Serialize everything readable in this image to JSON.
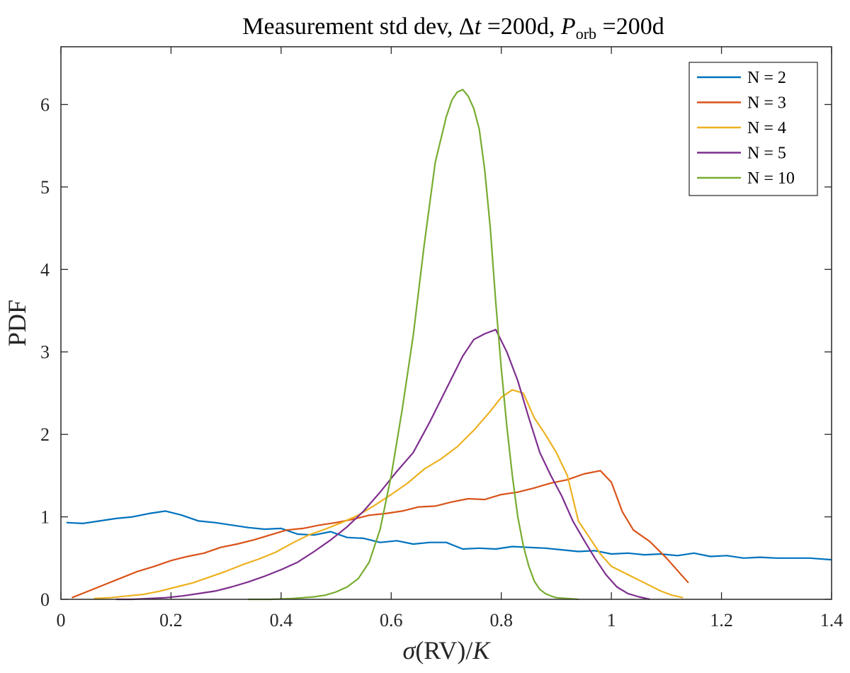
{
  "chart_data": {
    "type": "line",
    "title": "Measurement std dev, Δt =200d, P_orb =200d",
    "title_parts": {
      "prefix": "Measurement std dev, ",
      "delta": "Δ",
      "t": "t",
      "eq1": " =200d, ",
      "p": "P",
      "orb": "orb",
      "eq2": " =200d"
    },
    "xlabel": "σ(RV)/K",
    "xlabel_parts": {
      "sigma": "σ",
      "rv": "(RV)/",
      "k": "K"
    },
    "ylabel": "PDF",
    "xlim": [
      0,
      1.4
    ],
    "ylim": [
      0,
      6.7
    ],
    "xticks": [
      0,
      0.2,
      0.4,
      0.6,
      0.8,
      1,
      1.2,
      1.4
    ],
    "xtick_labels": [
      "0",
      "0.2",
      "0.4",
      "0.6",
      "0.8",
      "1",
      "1.2",
      "1.4"
    ],
    "yticks": [
      0,
      1,
      2,
      3,
      4,
      5,
      6
    ],
    "ytick_labels": [
      "0",
      "1",
      "2",
      "3",
      "4",
      "5",
      "6"
    ],
    "grid": false,
    "legend_position": "top-right",
    "series": [
      {
        "name": "N = 2",
        "color": "#0072BD",
        "x": [
          0.01,
          0.04,
          0.07,
          0.1,
          0.13,
          0.16,
          0.19,
          0.22,
          0.25,
          0.28,
          0.31,
          0.34,
          0.37,
          0.4,
          0.43,
          0.46,
          0.49,
          0.52,
          0.55,
          0.58,
          0.61,
          0.64,
          0.67,
          0.7,
          0.73,
          0.76,
          0.79,
          0.82,
          0.85,
          0.88,
          0.91,
          0.94,
          0.97,
          1.0,
          1.03,
          1.06,
          1.09,
          1.12,
          1.15,
          1.18,
          1.21,
          1.24,
          1.27,
          1.3,
          1.33,
          1.36,
          1.4
        ],
        "y": [
          0.93,
          0.92,
          0.95,
          0.98,
          1.0,
          1.04,
          1.07,
          1.02,
          0.95,
          0.93,
          0.9,
          0.87,
          0.85,
          0.86,
          0.79,
          0.78,
          0.82,
          0.75,
          0.74,
          0.69,
          0.71,
          0.67,
          0.69,
          0.69,
          0.61,
          0.62,
          0.61,
          0.64,
          0.63,
          0.62,
          0.6,
          0.58,
          0.59,
          0.55,
          0.56,
          0.54,
          0.55,
          0.53,
          0.56,
          0.52,
          0.53,
          0.5,
          0.51,
          0.5,
          0.5,
          0.5,
          0.48
        ]
      },
      {
        "name": "N = 3",
        "color": "#D95319",
        "x": [
          0.02,
          0.05,
          0.08,
          0.11,
          0.14,
          0.17,
          0.2,
          0.23,
          0.26,
          0.29,
          0.32,
          0.35,
          0.38,
          0.41,
          0.44,
          0.47,
          0.5,
          0.53,
          0.56,
          0.59,
          0.62,
          0.65,
          0.68,
          0.71,
          0.74,
          0.77,
          0.8,
          0.83,
          0.86,
          0.89,
          0.92,
          0.95,
          0.98,
          1.0,
          1.02,
          1.04,
          1.07,
          1.1,
          1.12,
          1.14
        ],
        "y": [
          0.02,
          0.1,
          0.18,
          0.26,
          0.34,
          0.4,
          0.47,
          0.52,
          0.56,
          0.63,
          0.67,
          0.72,
          0.78,
          0.84,
          0.86,
          0.9,
          0.93,
          0.97,
          1.02,
          1.04,
          1.07,
          1.12,
          1.13,
          1.18,
          1.22,
          1.21,
          1.27,
          1.3,
          1.35,
          1.41,
          1.45,
          1.52,
          1.56,
          1.42,
          1.06,
          0.84,
          0.7,
          0.5,
          0.35,
          0.2
        ]
      },
      {
        "name": "N = 4",
        "color": "#EDB120",
        "x": [
          0.06,
          0.09,
          0.12,
          0.15,
          0.18,
          0.21,
          0.24,
          0.27,
          0.3,
          0.33,
          0.36,
          0.39,
          0.42,
          0.45,
          0.48,
          0.51,
          0.54,
          0.57,
          0.6,
          0.63,
          0.66,
          0.69,
          0.72,
          0.75,
          0.78,
          0.8,
          0.82,
          0.84,
          0.86,
          0.88,
          0.9,
          0.92,
          0.94,
          0.96,
          0.98,
          1.0,
          1.03,
          1.06,
          1.09,
          1.11,
          1.13
        ],
        "y": [
          0.01,
          0.02,
          0.04,
          0.06,
          0.1,
          0.15,
          0.2,
          0.27,
          0.34,
          0.42,
          0.49,
          0.57,
          0.68,
          0.78,
          0.85,
          0.93,
          1.02,
          1.14,
          1.27,
          1.41,
          1.58,
          1.7,
          1.85,
          2.05,
          2.28,
          2.45,
          2.54,
          2.5,
          2.2,
          2.0,
          1.78,
          1.5,
          0.95,
          0.75,
          0.55,
          0.4,
          0.3,
          0.2,
          0.1,
          0.05,
          0.02
        ]
      },
      {
        "name": "N = 5",
        "color": "#7E2F8E",
        "x": [
          0.1,
          0.13,
          0.16,
          0.19,
          0.22,
          0.25,
          0.28,
          0.31,
          0.34,
          0.37,
          0.4,
          0.43,
          0.46,
          0.49,
          0.52,
          0.55,
          0.58,
          0.61,
          0.64,
          0.67,
          0.7,
          0.73,
          0.75,
          0.77,
          0.79,
          0.81,
          0.83,
          0.85,
          0.87,
          0.89,
          0.91,
          0.93,
          0.95,
          0.97,
          0.99,
          1.01,
          1.03,
          1.05,
          1.07
        ],
        "y": [
          0.0,
          0.0,
          0.01,
          0.02,
          0.04,
          0.07,
          0.1,
          0.15,
          0.21,
          0.28,
          0.36,
          0.45,
          0.58,
          0.72,
          0.88,
          1.07,
          1.3,
          1.55,
          1.78,
          2.15,
          2.55,
          2.95,
          3.15,
          3.22,
          3.27,
          3.0,
          2.65,
          2.2,
          1.78,
          1.5,
          1.25,
          0.95,
          0.72,
          0.5,
          0.3,
          0.15,
          0.07,
          0.03,
          0.0
        ]
      },
      {
        "name": "N = 10",
        "color": "#77AC30",
        "x": [
          0.34,
          0.38,
          0.42,
          0.44,
          0.46,
          0.48,
          0.5,
          0.52,
          0.54,
          0.56,
          0.58,
          0.6,
          0.62,
          0.64,
          0.66,
          0.68,
          0.7,
          0.71,
          0.72,
          0.73,
          0.74,
          0.75,
          0.76,
          0.77,
          0.78,
          0.79,
          0.8,
          0.81,
          0.82,
          0.83,
          0.84,
          0.85,
          0.86,
          0.87,
          0.88,
          0.89,
          0.9,
          0.92,
          0.94
        ],
        "y": [
          0.0,
          0.0,
          0.01,
          0.02,
          0.03,
          0.05,
          0.09,
          0.15,
          0.25,
          0.45,
          0.85,
          1.5,
          2.3,
          3.2,
          4.3,
          5.3,
          5.85,
          6.05,
          6.15,
          6.18,
          6.1,
          5.95,
          5.7,
          5.2,
          4.5,
          3.6,
          2.8,
          2.1,
          1.5,
          1.0,
          0.65,
          0.4,
          0.22,
          0.12,
          0.07,
          0.04,
          0.02,
          0.01,
          0.0
        ]
      }
    ]
  }
}
